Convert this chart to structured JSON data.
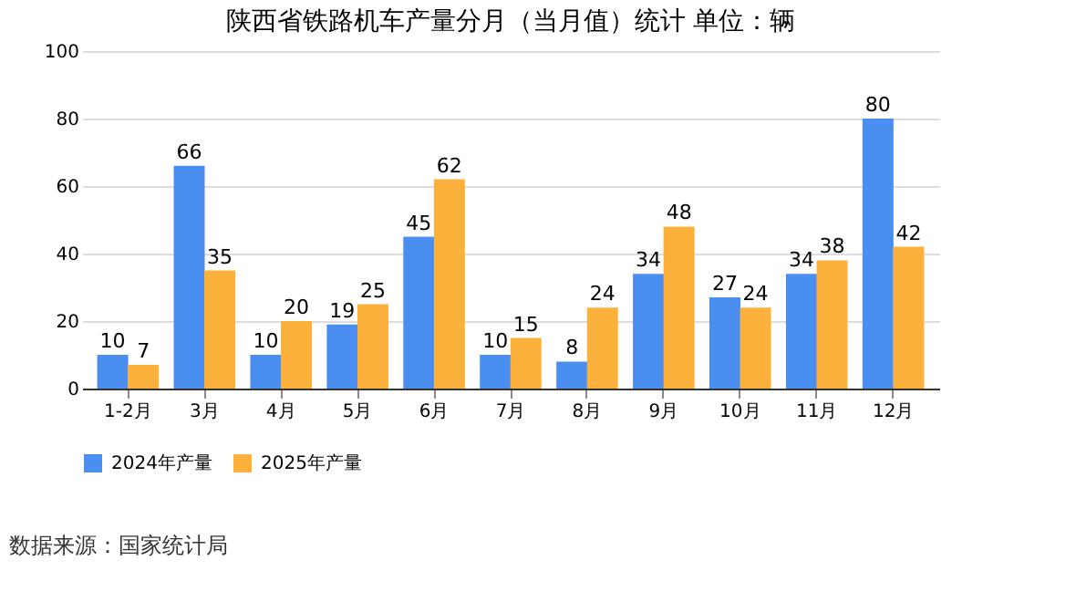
{
  "chart_data": {
    "type": "bar",
    "title": "陕西省铁路机车产量分月（当月值）统计  单位：辆",
    "categories": [
      "1-2月",
      "3月",
      "4月",
      "5月",
      "6月",
      "7月",
      "8月",
      "9月",
      "10月",
      "11月",
      "12月"
    ],
    "series": [
      {
        "name": "2024年产量",
        "color": "#4a8ff0",
        "values": [
          10,
          66,
          10,
          19,
          45,
          10,
          8,
          34,
          27,
          34,
          80
        ]
      },
      {
        "name": "2025年产量",
        "color": "#fbb13c",
        "values": [
          7,
          35,
          20,
          25,
          62,
          15,
          24,
          48,
          24,
          38,
          42
        ]
      }
    ],
    "ylim": [
      0,
      100
    ],
    "yticks": [
      0,
      20,
      40,
      60,
      80,
      100
    ],
    "grid": "y",
    "legend": "bottom",
    "data_labels": true,
    "annotations": [
      "数据来源：国家统计局"
    ]
  }
}
